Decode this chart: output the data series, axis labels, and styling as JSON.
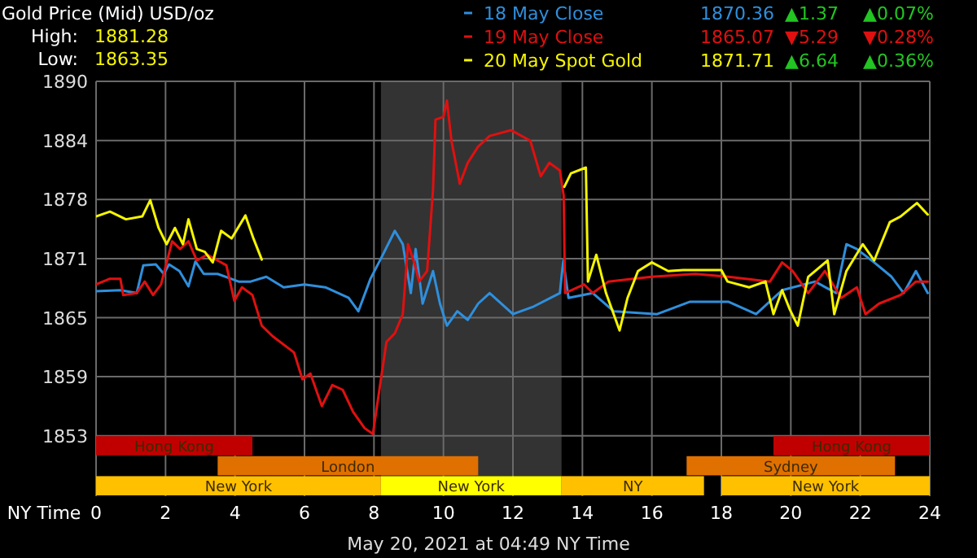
{
  "chart_data": {
    "type": "line",
    "title": "Gold Price (Mid) USD/oz",
    "xlabel": "NY Time",
    "annotations": [
      "High:",
      "1881.28",
      "Low:",
      "1863.35",
      "1870.36",
      "▲1.37",
      "▲0.07%",
      "1865.07",
      "▼5.29",
      "▼0.28%",
      "1871.71",
      "▲6.64",
      "▲0.36%",
      "May 20, 2021 at 04:49 NY Time"
    ],
    "xlim": [
      0,
      24
    ],
    "xticks": [
      0,
      2,
      4,
      6,
      8,
      10,
      12,
      14,
      16,
      18,
      20,
      22,
      24
    ],
    "ylim": [
      1846.7,
      1890
    ],
    "yticks": [
      1853,
      {
        "value": 1859.17,
        "label": "1859"
      },
      {
        "value": 1865.33,
        "label": "1865"
      },
      {
        "value": 1871.5,
        "label": "1871"
      },
      {
        "value": 1877.67,
        "label": "1878"
      },
      {
        "value": 1883.83,
        "label": "1884"
      },
      1890
    ],
    "grid": true,
    "legend": "top right",
    "line_style": "solid",
    "bands": [
      {
        "axis": "x",
        "from": 8.2,
        "to": 13.4,
        "color": "#333333"
      },
      {
        "axis": "x",
        "from": 0,
        "to": 4.5,
        "label": "Hong Kong",
        "color": "#c00000"
      },
      {
        "axis": "x",
        "from": 19.5,
        "to": 24,
        "label": "Hong Kong",
        "color": "#c00000"
      },
      {
        "axis": "x",
        "from": 3.5,
        "to": 11,
        "label": "London",
        "color": "#e07000"
      },
      {
        "axis": "x",
        "from": 17,
        "to": 23,
        "label": "Sydney",
        "color": "#e07000"
      },
      {
        "axis": "x",
        "from": 0,
        "to": 8.2,
        "label": "New York",
        "color": "#ffc000"
      },
      {
        "axis": "x",
        "from": 8.2,
        "to": 13.4,
        "label": "New York",
        "color": "#ffff00"
      },
      {
        "axis": "x",
        "from": 13.4,
        "to": 17.5,
        "label": "NY",
        "color": "#ffc000"
      },
      {
        "axis": "x",
        "from": 18,
        "to": 24,
        "label": "New York",
        "color": "#ffc000"
      }
    ],
    "series": [
      {
        "name": "18 May Close",
        "color": "#2f8fdc",
        "x": [
          0,
          0.7,
          1.17,
          1.36,
          1.72,
          1.95,
          2.1,
          2.4,
          2.66,
          2.86,
          3.1,
          3.5,
          3.8,
          4.1,
          4.45,
          4.9,
          5.4,
          6.0,
          6.6,
          7.27,
          7.55,
          7.9,
          8.2,
          8.6,
          8.83,
          9.06,
          9.2,
          9.4,
          9.7,
          9.9,
          10.1,
          10.4,
          10.7,
          11.0,
          11.33,
          12.0,
          12.6,
          13.35,
          13.45,
          13.6,
          14.3,
          14.9,
          16.15,
          17.1,
          18.2,
          19.0,
          19.75,
          20.7,
          21.3,
          21.6,
          21.9,
          22.4,
          22.9,
          23.25,
          23.6,
          23.94
        ],
        "values": [
          1868.1,
          1868.2,
          1867.9,
          1870.8,
          1870.9,
          1869.9,
          1870.9,
          1870.2,
          1868.6,
          1871.2,
          1869.9,
          1869.9,
          1869.5,
          1869.1,
          1869.1,
          1869.6,
          1868.5,
          1868.8,
          1868.5,
          1867.4,
          1866.0,
          1869.4,
          1871.5,
          1874.4,
          1873.0,
          1867.9,
          1872.5,
          1866.8,
          1870.2,
          1866.8,
          1864.5,
          1866.0,
          1865.1,
          1866.8,
          1867.9,
          1865.7,
          1866.5,
          1867.9,
          1871.3,
          1867.4,
          1867.9,
          1866.0,
          1865.7,
          1867.0,
          1867.0,
          1865.7,
          1868.2,
          1869.1,
          1867.9,
          1873.0,
          1872.5,
          1871.1,
          1869.6,
          1867.9,
          1870.2,
          1867.9
        ]
      },
      {
        "name": "19 May Close",
        "color": "#e01010",
        "x": [
          0,
          0.4,
          0.7,
          0.78,
          1.17,
          1.4,
          1.64,
          1.87,
          2.19,
          2.42,
          2.66,
          2.9,
          3.2,
          3.5,
          3.75,
          3.98,
          4.2,
          4.5,
          4.77,
          5.08,
          5.7,
          5.94,
          6.17,
          6.5,
          6.8,
          7.1,
          7.4,
          7.73,
          7.97,
          8.2,
          8.36,
          8.6,
          8.83,
          8.98,
          9.14,
          9.3,
          9.53,
          9.7,
          9.77,
          10.0,
          10.1,
          10.23,
          10.47,
          10.7,
          11.0,
          11.33,
          11.95,
          12.5,
          12.8,
          13.05,
          13.35,
          13.46,
          13.5,
          14.05,
          14.3,
          14.75,
          16.0,
          17.25,
          18.2,
          19.4,
          19.75,
          20.05,
          20.5,
          20.98,
          21.45,
          21.9,
          22.15,
          22.54,
          23.16,
          23.6,
          23.94
        ],
        "values": [
          1868.8,
          1869.4,
          1869.4,
          1867.7,
          1867.9,
          1869.1,
          1867.7,
          1868.8,
          1873.3,
          1872.5,
          1873.3,
          1871.3,
          1871.9,
          1871.3,
          1870.8,
          1867.1,
          1868.5,
          1867.7,
          1864.5,
          1863.4,
          1861.7,
          1858.9,
          1859.5,
          1856.1,
          1858.3,
          1857.8,
          1855.5,
          1853.8,
          1853.2,
          1858.9,
          1862.8,
          1863.7,
          1865.7,
          1873.0,
          1871.3,
          1869.1,
          1870.2,
          1878.7,
          1886.0,
          1886.3,
          1888.0,
          1883.8,
          1879.3,
          1881.5,
          1883.2,
          1884.3,
          1884.9,
          1883.8,
          1880.1,
          1881.5,
          1880.7,
          1878.1,
          1867.9,
          1868.8,
          1867.9,
          1869.1,
          1869.6,
          1869.9,
          1869.6,
          1869.1,
          1871.1,
          1870.2,
          1867.9,
          1870.2,
          1867.4,
          1868.5,
          1865.7,
          1866.8,
          1867.7,
          1869.1,
          1869.1
        ]
      },
      {
        "name": "20 May Spot Gold",
        "color": "#f5f500",
        "x": [
          0,
          0.4,
          0.86,
          1.33,
          1.56,
          1.8,
          2.03,
          2.27,
          2.5,
          2.66,
          2.9,
          3.13,
          3.36,
          3.6,
          3.9,
          4.3,
          4.53,
          4.77,
          9.0,
          13.48,
          13.67,
          14.1,
          14.16,
          14.4,
          14.68,
          15.07,
          15.3,
          15.6,
          16.0,
          16.47,
          16.9,
          18.0,
          18.18,
          18.8,
          19.27,
          19.5,
          19.75,
          19.97,
          20.2,
          20.5,
          21.06,
          21.25,
          21.6,
          22.07,
          22.4,
          22.85,
          23.16,
          23.63,
          23.94
        ],
        "values": [
          1875.9,
          1876.4,
          1875.6,
          1875.9,
          1877.6,
          1874.7,
          1873.0,
          1874.7,
          1873.0,
          1875.6,
          1872.5,
          1872.2,
          1871.1,
          1874.4,
          1873.6,
          1876.0,
          1873.6,
          1871.4,
          null,
          1879.0,
          1880.4,
          1881.0,
          1869.1,
          1871.9,
          1867.9,
          1864.0,
          1867.4,
          1870.2,
          1871.1,
          1870.2,
          1870.3,
          1870.3,
          1869.1,
          1868.5,
          1869.1,
          1865.7,
          1868.2,
          1866.2,
          1864.5,
          1869.6,
          1871.3,
          1865.7,
          1870.2,
          1873.0,
          1871.3,
          1875.3,
          1875.9,
          1877.3,
          1876.1
        ]
      }
    ]
  }
}
